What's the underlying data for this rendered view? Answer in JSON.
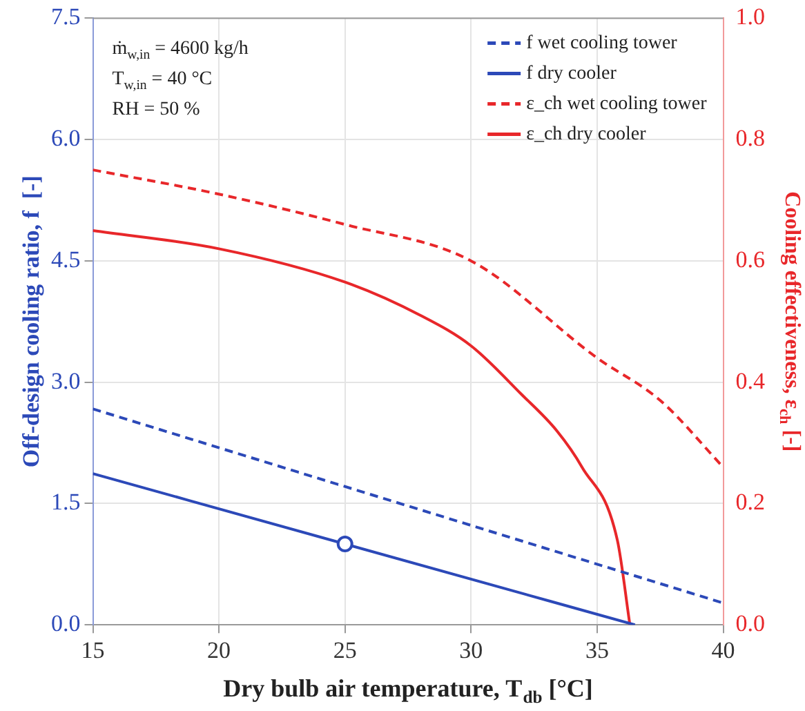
{
  "chart_data": {
    "type": "line",
    "xlabel": "Dry bulb air temperature, T$_{db}$ [°C]",
    "ylabel": "Off-design cooling ratio, f  [-]",
    "y2label": "Cooling effectiveness, ε$_{ch}$ [-]",
    "annotations": [
      "ṁ$_{w,in}$ = 4600 kg/h",
      "T$_{w,in}$ = 40 °C",
      "RH = 50 %"
    ],
    "xlim": [
      15,
      40
    ],
    "xticks": [
      15,
      20,
      25,
      30,
      35,
      40
    ],
    "ylim": [
      0,
      7.5
    ],
    "yticks": [
      {
        "value": 0,
        "label": "0.0"
      },
      {
        "value": 1.5,
        "label": "1.5"
      },
      {
        "value": 3,
        "label": "3.0"
      },
      {
        "value": 4.5,
        "label": "4.5"
      },
      {
        "value": 6,
        "label": "6.0"
      },
      {
        "value": 7.5,
        "label": "7.5"
      }
    ],
    "y2lim": [
      0,
      1
    ],
    "y2ticks": [
      {
        "value": 0,
        "label": "0.0"
      },
      {
        "value": 0.2,
        "label": "0.2"
      },
      {
        "value": 0.4,
        "label": "0.4"
      },
      {
        "value": 0.6,
        "label": "0.6"
      },
      {
        "value": 0.8,
        "label": "0.8"
      },
      {
        "value": 1,
        "label": "1.0"
      }
    ],
    "grid": true,
    "legend": "top right",
    "series": [
      {
        "name": "f wet cooling tower",
        "color": "#2c49b8",
        "line_style": "dashed",
        "x": [
          15,
          40
        ],
        "values": [
          2.67,
          0.27
        ]
      },
      {
        "name": "f dry cooler",
        "color": "#2c49b8",
        "line_style": "solid",
        "x": [
          15,
          25,
          36.5
        ],
        "values": [
          1.87,
          1.0,
          0
        ]
      },
      {
        "name": "ε_ch wet cooling tower",
        "color": "#e8272a",
        "line_style": "dashed",
        "axis": "y2",
        "x": [
          15,
          20,
          25,
          30,
          35,
          37.5,
          40
        ],
        "values": [
          0.75,
          0.71,
          0.66,
          0.6,
          0.44,
          0.37,
          0.26
        ]
      },
      {
        "name": "ε_ch dry cooler",
        "color": "#e8272a",
        "line_style": "solid",
        "axis": "y2",
        "x": [
          15,
          20,
          25,
          28,
          30,
          32,
          33.4,
          34.4,
          35.8,
          36.3
        ],
        "values": [
          0.65,
          0.62,
          0.565,
          0.51,
          0.46,
          0.38,
          0.32,
          0.26,
          0.14,
          0
        ]
      },
      {
        "type": "scatter",
        "color": "#2c49b8",
        "marker": "circle",
        "x": [
          25
        ],
        "values": [
          1.0
        ]
      }
    ]
  }
}
